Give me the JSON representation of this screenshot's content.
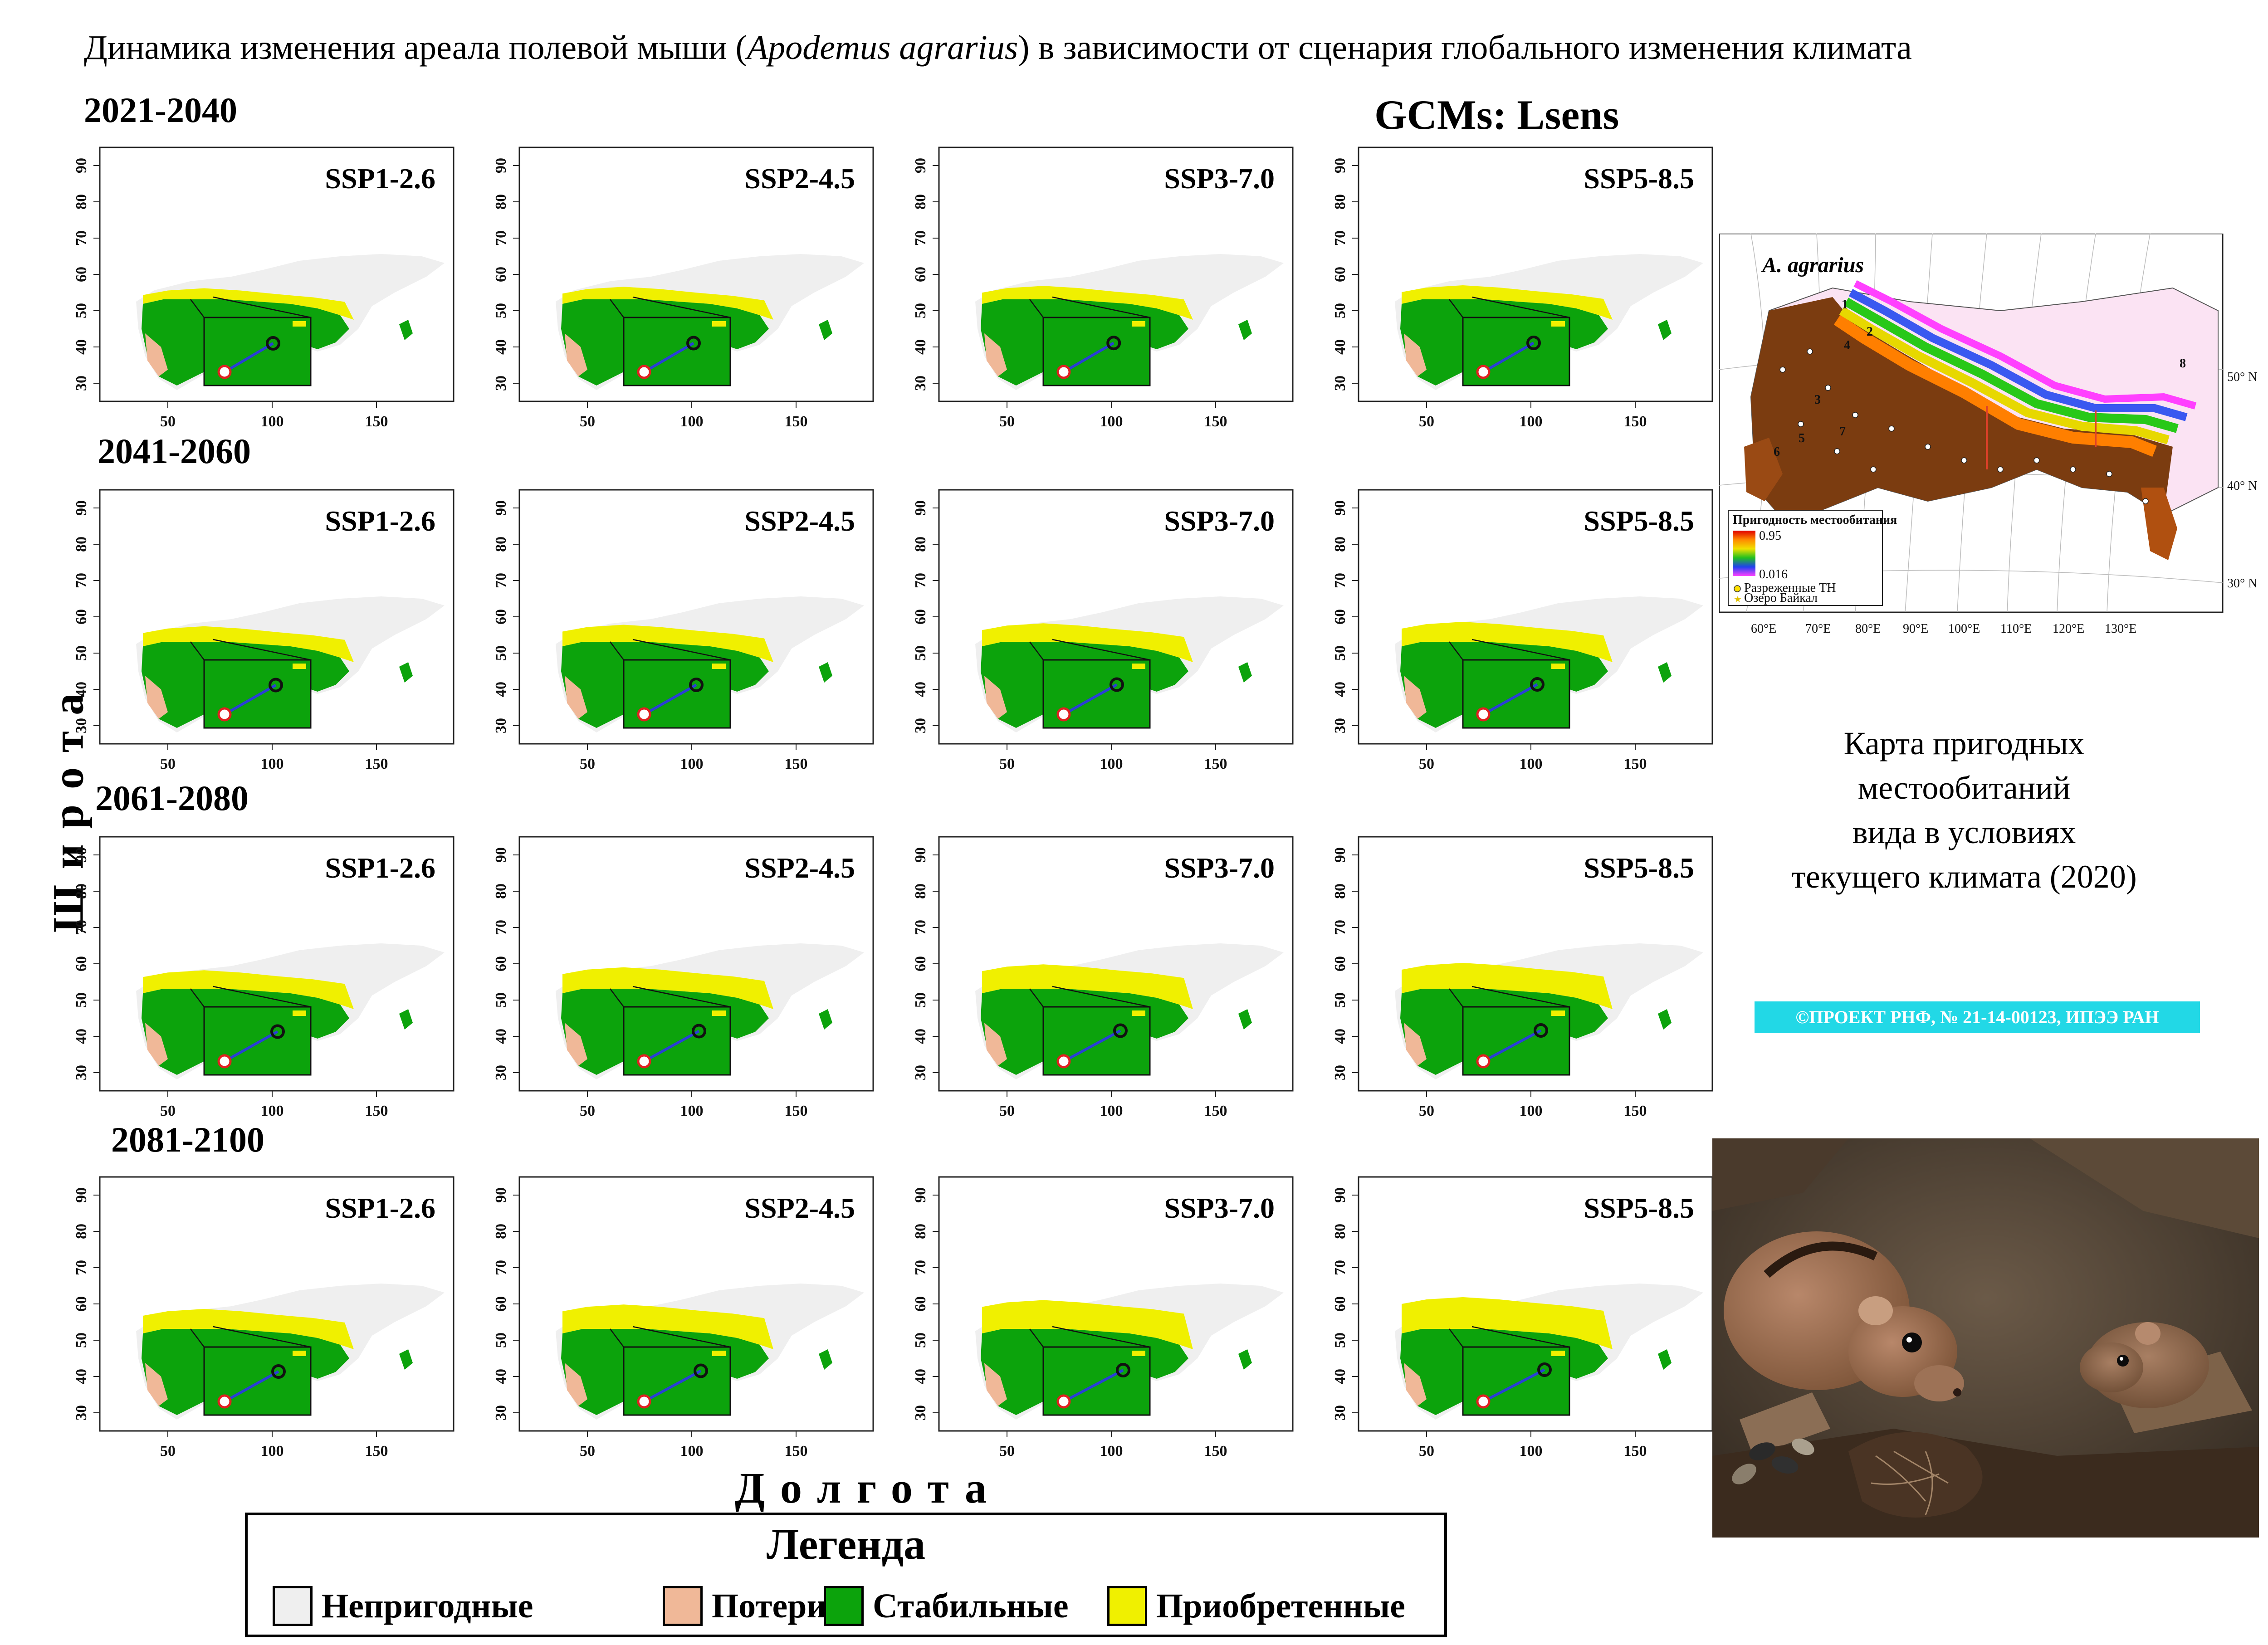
{
  "title_plain": "Динамика изменения ареала полевой мыши (",
  "title_species": "Apodemus agrarius",
  "title_rest": ") в зависимости от сценария глобального изменения климата",
  "gcm_label": "GCMs: Lsens",
  "y_axis_label": "Широта",
  "x_axis_label": "Долгота",
  "periods": [
    "2021-2040",
    "2041-2060",
    "2061-2080",
    "2081-2100"
  ],
  "scenarios": [
    "SSP1-2.6",
    "SSP2-4.5",
    "SSP3-7.0",
    "SSP5-8.5"
  ],
  "y_ticks": [
    "90",
    "80",
    "70",
    "60",
    "50",
    "40",
    "30"
  ],
  "x_ticks": [
    "50",
    "100",
    "150"
  ],
  "gained_level": [
    [
      0.3,
      0.35,
      0.38,
      0.4
    ],
    [
      0.45,
      0.5,
      0.55,
      0.6
    ],
    [
      0.55,
      0.65,
      0.75,
      0.8
    ],
    [
      0.6,
      0.75,
      0.9,
      1.0
    ]
  ],
  "colors": {
    "unsuitable": "#efefef",
    "losses": "#f0b898",
    "stable": "#0ca30c",
    "gained": "#f0f000",
    "arrow": "#2a3fd6",
    "marker_start": "#e02020",
    "marker_end": "#111111",
    "project_bg": "#22d8e6"
  },
  "legend": {
    "title": "Легенда",
    "items": [
      {
        "label": "Непригодные",
        "color": "#efefef"
      },
      {
        "label": "Потери",
        "color": "#f0b898"
      },
      {
        "label": "Стабильные",
        "color": "#0ca30c"
      },
      {
        "label": "Приобретенные",
        "color": "#f0f000"
      }
    ]
  },
  "reference_map": {
    "species": "A. agrarius",
    "legend_title": "Пригодность местообитания",
    "max_value": "0.95",
    "min_value": "0.016",
    "marker_sites": "Разреженные ТН",
    "marker_lake": "Озеро Байкал",
    "lat_labels": [
      "50° N",
      "40° N",
      "30° N"
    ],
    "lon_labels": [
      "60°E",
      "70°E",
      "80°E",
      "90°E",
      "100°E",
      "110°E",
      "120°E",
      "130°E"
    ],
    "site_numbers": [
      "1",
      "2",
      "3",
      "4",
      "5",
      "6",
      "7",
      "8"
    ]
  },
  "caption_lines": [
    "Карта пригодных",
    "местообитаний",
    "вида в условиях",
    "текущего климата (2020)"
  ],
  "project_label": "©ПРОЕКТ РНФ, № 21-14-00123, ИПЭЭ РАН"
}
